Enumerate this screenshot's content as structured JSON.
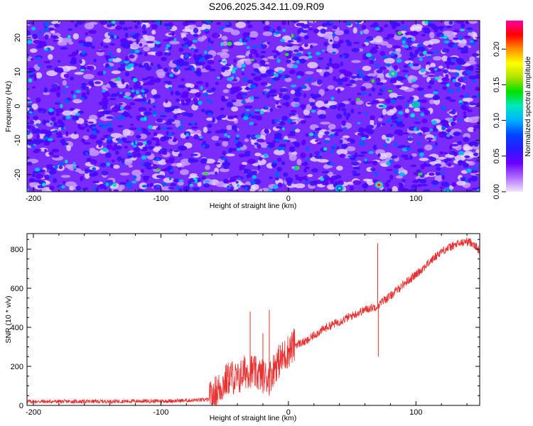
{
  "title": "S206.2025.342.11.09.R09",
  "chart_data": [
    {
      "type": "heatmap",
      "xlabel": "Height of straight line (km)",
      "ylabel": "Frequency (Hz)",
      "xlim": [
        -205,
        150
      ],
      "ylim": [
        -25,
        25
      ],
      "xticks": [
        -200,
        -100,
        0,
        100
      ],
      "yticks": [
        -20,
        -10,
        0,
        10,
        20
      ],
      "colorbar": {
        "label": "Normalized spectral amplitude",
        "range": [
          0,
          0.24
        ],
        "ticks": [
          "0.00",
          "0.05",
          "0.10",
          "0.15",
          "0.20"
        ],
        "colors": [
          "#f0e6ff",
          "#b06cff",
          "#6a00ff",
          "#2a1aff",
          "#0044ff",
          "#00b0ff",
          "#00e8c0",
          "#00e000",
          "#b0e000",
          "#ffff00",
          "#ff9000",
          "#ff0000",
          "#ff00a0"
        ]
      },
      "peaks": [
        {
          "x": 71,
          "y": -23,
          "value": 0.24
        },
        {
          "x": 82,
          "y": 9.5,
          "value": 0.15
        },
        {
          "x": 100,
          "y": 0.5,
          "value": 0.13
        },
        {
          "x": 40,
          "y": -24,
          "value": 0.12
        },
        {
          "x": 125,
          "y": -25,
          "value": 0.12
        }
      ]
    },
    {
      "type": "line",
      "xlabel": "Height of straight line (km)",
      "ylabel": "SNR (10 * v/v)",
      "xlim": [
        -205,
        150
      ],
      "ylim": [
        0,
        880
      ],
      "xticks": [
        -200,
        -100,
        0,
        100
      ],
      "yticks": [
        0,
        200,
        400,
        600,
        800
      ],
      "series": [
        {
          "color": "#e83030",
          "x": [
            -205,
            -180,
            -150,
            -120,
            -100,
            -80,
            -62,
            -55,
            -50,
            -45,
            -40,
            -35,
            -30,
            -25,
            -20,
            -15,
            -10,
            -5,
            0,
            5,
            10,
            15,
            20,
            25,
            30,
            40,
            50,
            60,
            65,
            70,
            75,
            80,
            90,
            100,
            110,
            120,
            130,
            140,
            145,
            150
          ],
          "y": [
            20,
            20,
            20,
            22,
            22,
            25,
            30,
            80,
            120,
            150,
            130,
            170,
            180,
            160,
            150,
            140,
            210,
            240,
            280,
            310,
            320,
            330,
            360,
            380,
            400,
            430,
            460,
            490,
            500,
            510,
            540,
            560,
            620,
            670,
            730,
            790,
            820,
            840,
            830,
            790
          ]
        }
      ],
      "spikes": [
        {
          "x": 70,
          "y": 830
        },
        {
          "x": 70.5,
          "y": 250
        },
        {
          "x": -30,
          "y": 480
        },
        {
          "x": -15,
          "y": 490
        },
        {
          "x": -20,
          "y": 370
        }
      ]
    }
  ]
}
